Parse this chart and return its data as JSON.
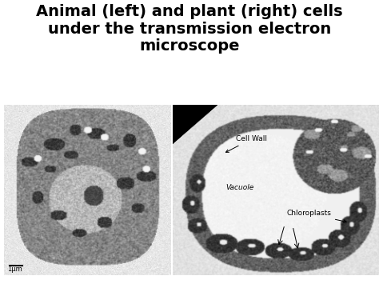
{
  "title_line1": "Animal (left) and plant (right) cells",
  "title_line2": "under the transmission electron",
  "title_line3": "microscope",
  "title_fontsize": 14,
  "title_fontweight": "bold",
  "background_color": "#ffffff",
  "fig_bg_color": "#ffffff",
  "annotation_cell_wall": "Cell Wall",
  "annotation_vacuole": "Vacuole",
  "annotation_chloroplasts": "Chloroplasts",
  "annotation_scale": "1μm",
  "annotation_fontsize": 6.5
}
